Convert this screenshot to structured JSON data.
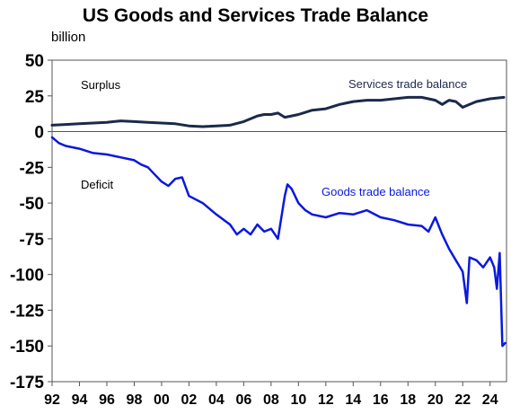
{
  "chart_data": {
    "type": "line",
    "title": "US Goods and Services Trade Balance",
    "unit_label": "billion",
    "ylim": [
      -175,
      50
    ],
    "xlim": [
      1992,
      2025.2
    ],
    "yticks": [
      50,
      25,
      0,
      -25,
      -50,
      -75,
      -100,
      -125,
      -150,
      -175
    ],
    "xtick_labels": [
      "92",
      "94",
      "96",
      "98",
      "00",
      "02",
      "04",
      "06",
      "08",
      "10",
      "12",
      "14",
      "16",
      "18",
      "20",
      "22",
      "24"
    ],
    "xtick_years": [
      1992,
      1994,
      1996,
      1998,
      2000,
      2002,
      2004,
      2006,
      2008,
      2010,
      2012,
      2014,
      2016,
      2018,
      2020,
      2022,
      2024
    ],
    "grid": false,
    "annotations": [
      {
        "text": "Surplus"
      },
      {
        "text": "Deficit"
      }
    ],
    "series": [
      {
        "name": "Services trade balance",
        "color": "#1b2a4a",
        "x": [
          1992,
          1993,
          1994,
          1995,
          1996,
          1997,
          1998,
          1999,
          2000,
          2001,
          2002,
          2003,
          2004,
          2005,
          2006,
          2007,
          2007.5,
          2008,
          2008.5,
          2009,
          2009.5,
          2010,
          2011,
          2012,
          2013,
          2014,
          2015,
          2016,
          2017,
          2018,
          2019,
          2019.5,
          2020,
          2020.5,
          2021,
          2021.5,
          2022,
          2022.5,
          2023,
          2024,
          2025
        ],
        "y": [
          4.5,
          5,
          5.5,
          6,
          6.5,
          7.5,
          7,
          6.5,
          6,
          5.5,
          4,
          3.5,
          4,
          4.5,
          7,
          11,
          12,
          12,
          13,
          10,
          11,
          12,
          15,
          16,
          19,
          21,
          22,
          22,
          23,
          24,
          24,
          23,
          22,
          19,
          22,
          21,
          17,
          19,
          21,
          23,
          24
        ]
      },
      {
        "name": "Goods trade balance",
        "color": "#0a18e0",
        "x": [
          1992,
          1992.5,
          1993,
          1994,
          1995,
          1996,
          1997,
          1998,
          1998.5,
          1999,
          1999.5,
          2000,
          2000.5,
          2001,
          2001.5,
          2002,
          2003,
          2004,
          2005,
          2005.5,
          2006,
          2006.5,
          2007,
          2007.5,
          2008,
          2008.5,
          2009,
          2009.2,
          2009.5,
          2010,
          2010.5,
          2011,
          2012,
          2013,
          2014,
          2015,
          2016,
          2017,
          2018,
          2019,
          2019.5,
          2020,
          2020.5,
          2021,
          2021.5,
          2022,
          2022.3,
          2022.5,
          2023,
          2023.5,
          2024,
          2024.3,
          2024.5,
          2024.7,
          2024.9,
          2025.1
        ],
        "y": [
          -4,
          -8,
          -10,
          -12,
          -15,
          -16,
          -18,
          -20,
          -23,
          -25,
          -30,
          -35,
          -38,
          -33,
          -32,
          -45,
          -50,
          -58,
          -65,
          -72,
          -68,
          -72,
          -65,
          -70,
          -68,
          -75,
          -45,
          -37,
          -40,
          -50,
          -55,
          -58,
          -60,
          -57,
          -58,
          -55,
          -60,
          -62,
          -65,
          -66,
          -70,
          -60,
          -72,
          -82,
          -90,
          -98,
          -120,
          -88,
          -90,
          -95,
          -88,
          -95,
          -110,
          -85,
          -150,
          -148
        ]
      }
    ]
  }
}
